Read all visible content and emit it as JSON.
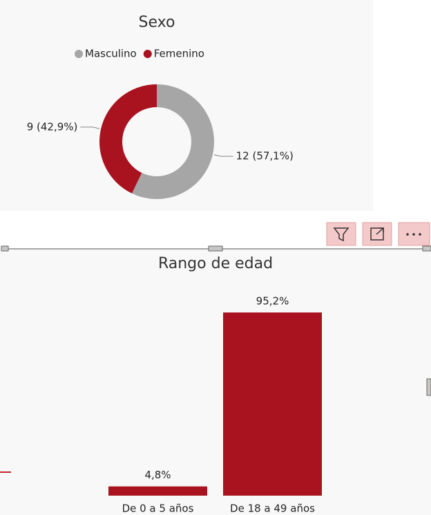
{
  "chart_data": [
    {
      "type": "donut",
      "title": "Sexo",
      "legend": "top",
      "categories": [
        "Masculino",
        "Femenino"
      ],
      "values": [
        12,
        9
      ],
      "value_labels": [
        "12 (57,1%)",
        "9 (42,9%)"
      ],
      "colors": [
        "#a6a6a6",
        "#a8131f"
      ]
    },
    {
      "type": "bar",
      "title": "Rango de edad",
      "categories": [
        "De 0 a 5 años",
        "De 18 a 49 años"
      ],
      "values": [
        4.8,
        95.2
      ],
      "value_labels": [
        "4,8%",
        "95,2%"
      ],
      "color": "#a8131f"
    }
  ]
}
